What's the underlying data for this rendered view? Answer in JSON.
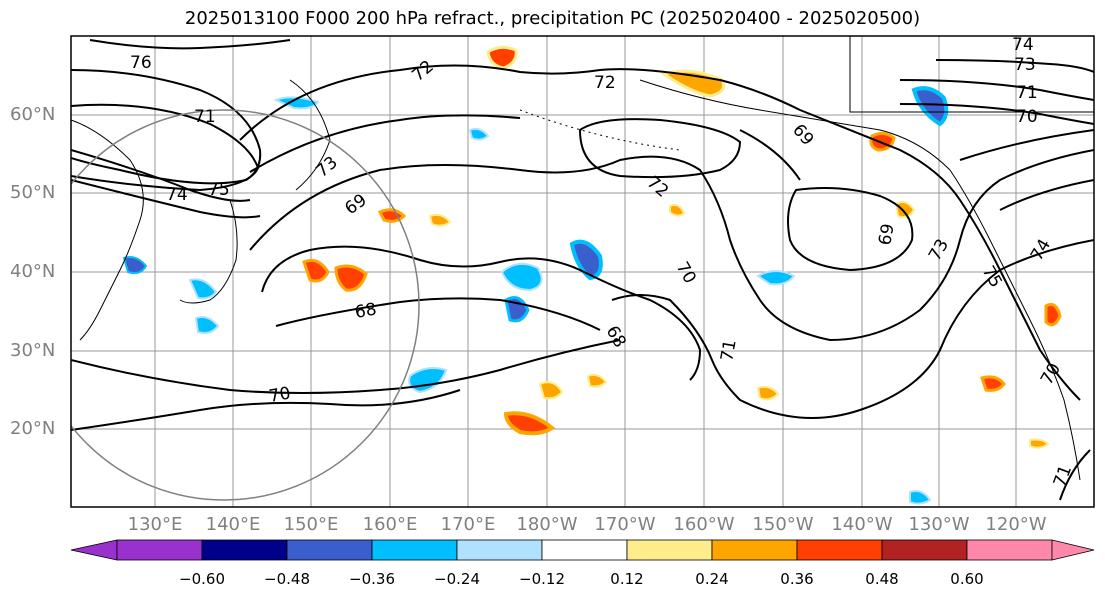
{
  "title": "2025013100 F000 200 hPa refract., precipitation PC (2025020400 - 2025020500)",
  "lat_labels": [
    "60°N",
    "50°N",
    "40°N",
    "30°N",
    "20°N"
  ],
  "lon_labels": [
    "130°E",
    "140°E",
    "150°E",
    "160°E",
    "170°E",
    "180°W",
    "170°W",
    "160°W",
    "150°W",
    "140°W",
    "130°W",
    "120°W"
  ],
  "contour_labels": [
    "76",
    "71",
    "74",
    "75",
    "73",
    "69",
    "68",
    "70",
    "72",
    "72",
    "72",
    "69",
    "70",
    "69",
    "73",
    "74",
    "73",
    "71",
    "70",
    "68",
    "71",
    "75",
    "70",
    "71",
    "74"
  ],
  "colorbar": {
    "tick_labels": [
      "−0.60",
      "−0.48",
      "−0.36",
      "−0.24",
      "−0.12",
      "0.12",
      "0.24",
      "0.36",
      "0.48",
      "0.60"
    ],
    "colors": [
      "#9932cc",
      "#00008b",
      "#3a5fcd",
      "#00bfff",
      "#b0e2ff",
      "#ffffff",
      "#ffec8b",
      "#ffa500",
      "#ff4000",
      "#b22222",
      "#ff88aa"
    ]
  },
  "colors": {
    "contour": "#000000",
    "grid": "#999999",
    "circle": "#808080",
    "axis_label": "#808080"
  }
}
